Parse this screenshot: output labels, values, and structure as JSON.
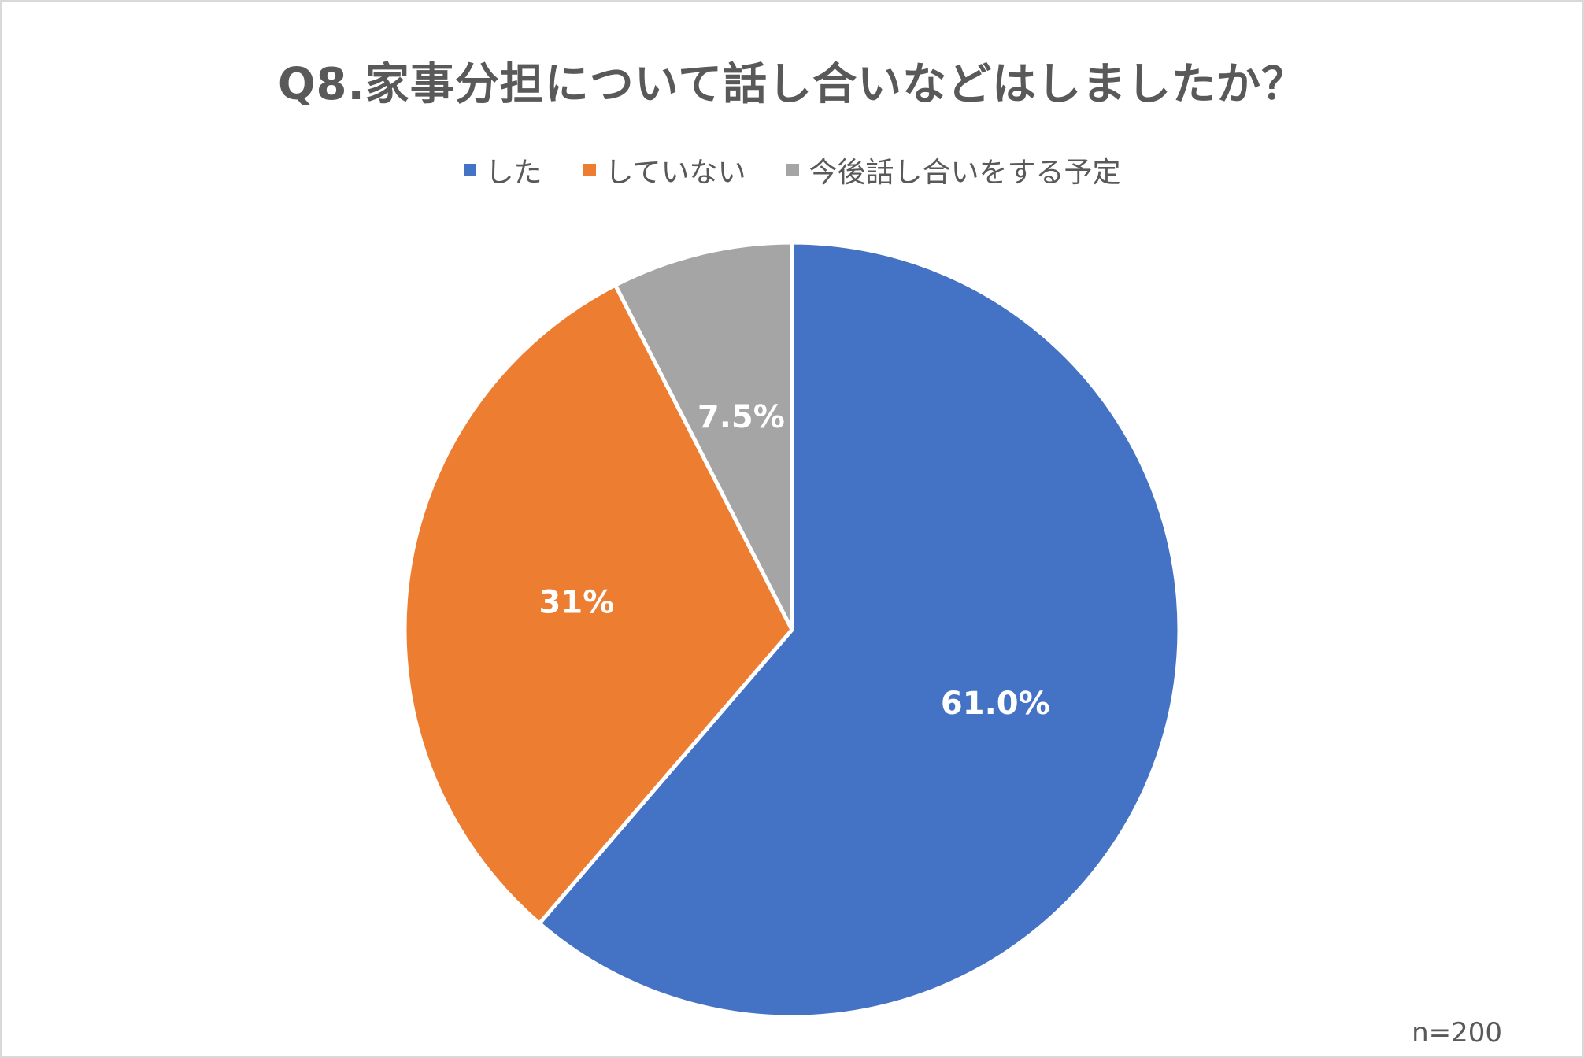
{
  "chart_data": {
    "type": "pie",
    "title": "Q8.家事分担について話し合いなどはしましたか？",
    "categories": [
      "した",
      "していない",
      "今後話し合いをする予定"
    ],
    "values": [
      61.0,
      31,
      7.5
    ],
    "data_labels": [
      "61.0%",
      "31%",
      "7.5%"
    ],
    "colors": [
      "#4472C4",
      "#ED7D31",
      "#A5A5A5"
    ],
    "legend_position": "top",
    "start_angle_deg": 0,
    "direction": "clockwise"
  },
  "footnote": "n=200"
}
